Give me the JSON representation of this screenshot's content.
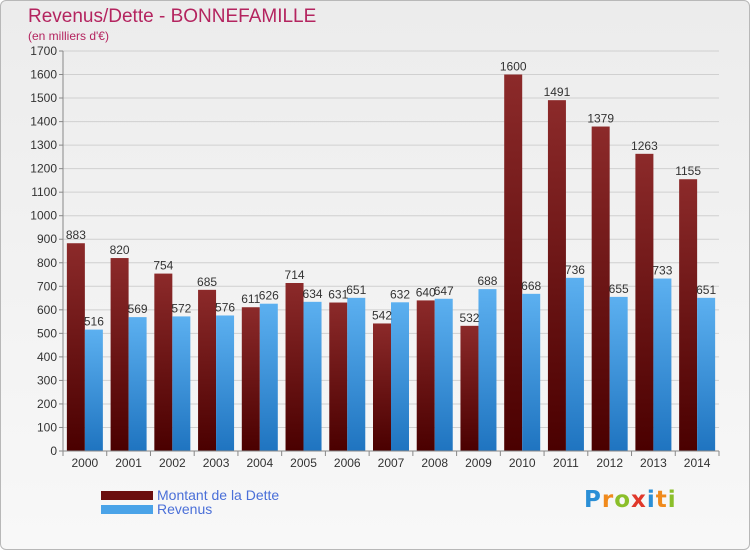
{
  "header": {
    "title": "Revenus/Dette - BONNEFAMILLE",
    "subtitle": "(en milliers d'€)"
  },
  "chart_data": {
    "type": "bar",
    "title": "Revenus/Dette - BONNEFAMILLE",
    "subtitle": "(en milliers d'€)",
    "xlabel": "",
    "ylabel": "",
    "categories": [
      "2000",
      "2001",
      "2002",
      "2003",
      "2004",
      "2005",
      "2006",
      "2007",
      "2008",
      "2009",
      "2010",
      "2011",
      "2012",
      "2013",
      "2014"
    ],
    "series": [
      {
        "name": "Montant de la Dette",
        "color": "#7a1a1a",
        "values": [
          883,
          820,
          754,
          685,
          611,
          714,
          631,
          542,
          640,
          532,
          1600,
          1491,
          1379,
          1263,
          1155
        ]
      },
      {
        "name": "Revenus",
        "color": "#4aa3e8",
        "values": [
          516,
          569,
          572,
          576,
          626,
          634,
          651,
          632,
          647,
          688,
          668,
          736,
          655,
          733,
          651
        ]
      }
    ],
    "data_labels": [
      [
        "883",
        "820",
        "754",
        "685",
        "611",
        "714",
        "631",
        "542",
        "640",
        "532",
        "1600",
        "1491",
        "1379",
        "1263",
        "1155"
      ],
      [
        "516",
        "569",
        "572",
        "576",
        "626",
        "634",
        "651",
        "632",
        "647",
        "688",
        "668",
        "736",
        "655",
        "733",
        "651"
      ]
    ],
    "ylim": [
      0,
      1700
    ],
    "yticks": [
      0,
      100,
      200,
      300,
      400,
      500,
      600,
      700,
      800,
      900,
      1000,
      1100,
      1200,
      1300,
      1400,
      1500,
      1600,
      1700
    ],
    "grid": true,
    "legend_position": "bottom-left"
  },
  "legend": {
    "items": [
      {
        "label": "Montant de la Dette",
        "color": "#6b0f0f"
      },
      {
        "label": "Revenus",
        "color": "#4aa3e8"
      }
    ]
  },
  "logo": {
    "text": "Proxiti",
    "letter_colors": [
      "#2b8fd6",
      "#f08a1c",
      "#8bbf2a",
      "#e0382b",
      "#2b8fd6",
      "#f08a1c",
      "#8bbf2a"
    ]
  }
}
